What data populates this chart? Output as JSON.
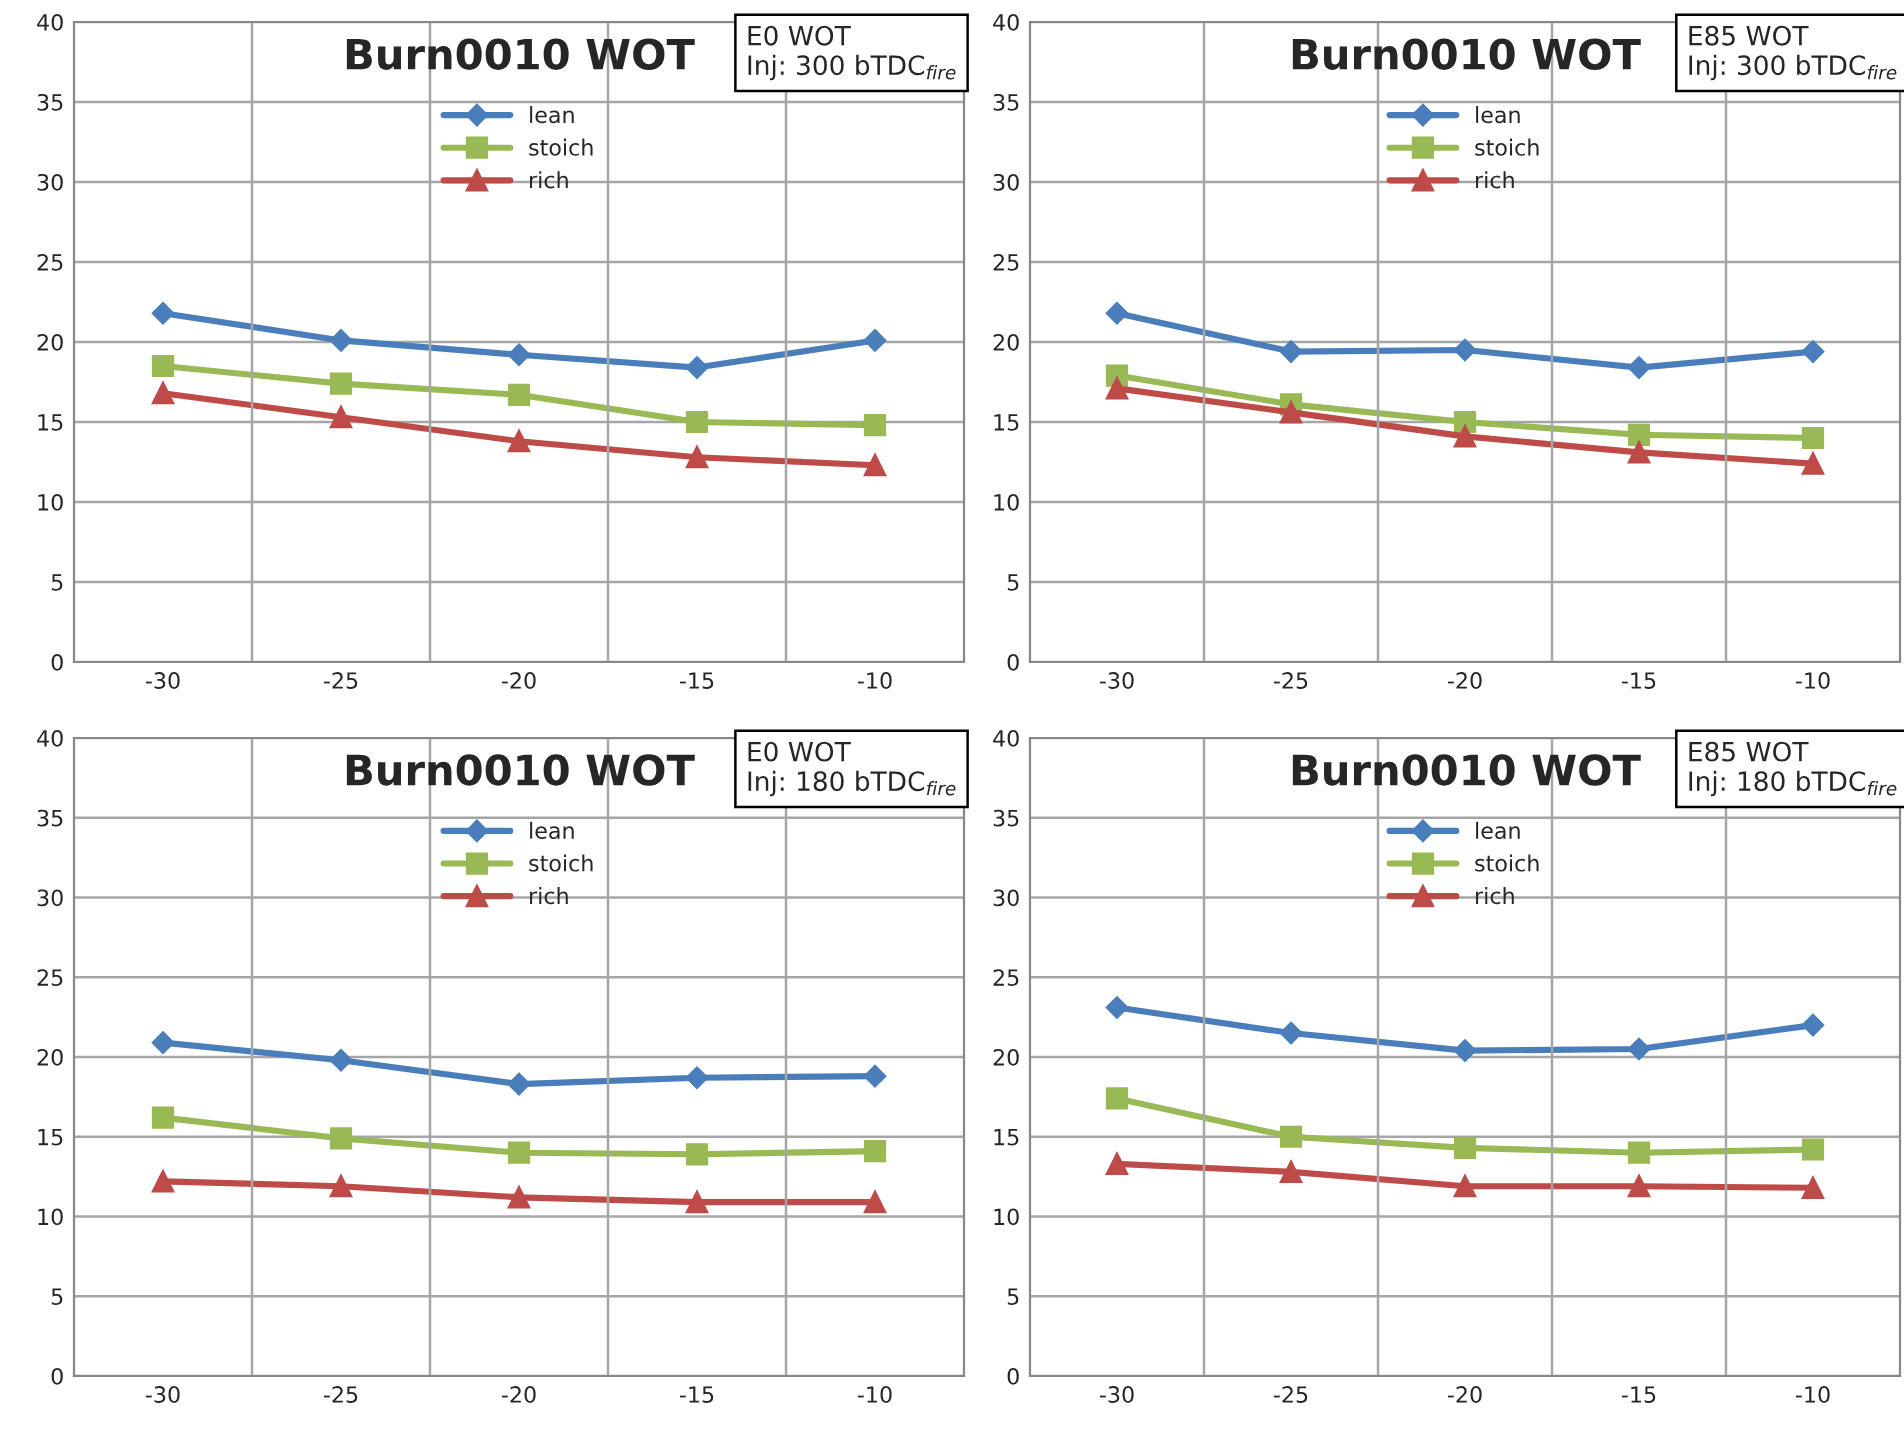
{
  "chart_data": [
    {
      "type": "line",
      "title": "Burn0010 WOT",
      "annotations": [
        "E0 WOT\nInj: 300 bTDC$_{fire}$"
      ],
      "categories": [
        "-30",
        "-25",
        "-20",
        "-15",
        "-10"
      ],
      "ylim": [
        0,
        40
      ],
      "yticks": [
        0,
        5,
        10,
        15,
        20,
        25,
        30,
        35,
        40
      ],
      "grid": true,
      "legend": "top",
      "series": [
        {
          "name": "lean",
          "color": "#4a7ebb",
          "marker": "diamond",
          "values": [
            21.8,
            20.1,
            19.2,
            18.4,
            20.1
          ]
        },
        {
          "name": "stoich",
          "color": "#98b954",
          "marker": "square",
          "values": [
            18.5,
            17.4,
            16.7,
            15.0,
            14.8
          ]
        },
        {
          "name": "rich",
          "color": "#be4b48",
          "marker": "triangle",
          "values": [
            16.8,
            15.3,
            13.8,
            12.8,
            12.3
          ]
        }
      ]
    },
    {
      "type": "line",
      "title": "Burn0010 WOT",
      "annotations": [
        "E85 WOT\nInj: 300 bTDC$_{fire}$"
      ],
      "categories": [
        "-30",
        "-25",
        "-20",
        "-15",
        "-10"
      ],
      "ylim": [
        0,
        40
      ],
      "yticks": [
        0,
        5,
        10,
        15,
        20,
        25,
        30,
        35,
        40
      ],
      "grid": true,
      "legend": "top",
      "series": [
        {
          "name": "lean",
          "color": "#4a7ebb",
          "marker": "diamond",
          "values": [
            21.8,
            19.4,
            19.5,
            18.4,
            19.4
          ]
        },
        {
          "name": "stoich",
          "color": "#98b954",
          "marker": "square",
          "values": [
            17.9,
            16.1,
            15.0,
            14.2,
            14.0
          ]
        },
        {
          "name": "rich",
          "color": "#be4b48",
          "marker": "triangle",
          "values": [
            17.1,
            15.6,
            14.1,
            13.1,
            12.4
          ]
        }
      ]
    },
    {
      "type": "line",
      "title": "Burn0010 WOT",
      "annotations": [
        "E0 WOT\nInj: 180 bTDC$_{fire}$"
      ],
      "categories": [
        "-30",
        "-25",
        "-20",
        "-15",
        "-10"
      ],
      "ylim": [
        0,
        40
      ],
      "yticks": [
        0,
        5,
        10,
        15,
        20,
        25,
        30,
        35,
        40
      ],
      "grid": true,
      "legend": "top",
      "series": [
        {
          "name": "lean",
          "color": "#4a7ebb",
          "marker": "diamond",
          "values": [
            20.9,
            19.8,
            18.3,
            18.7,
            18.8
          ]
        },
        {
          "name": "stoich",
          "color": "#98b954",
          "marker": "square",
          "values": [
            16.2,
            14.9,
            14.0,
            13.9,
            14.1
          ]
        },
        {
          "name": "rich",
          "color": "#be4b48",
          "marker": "triangle",
          "values": [
            12.2,
            11.9,
            11.2,
            10.9,
            10.9
          ]
        }
      ]
    },
    {
      "type": "line",
      "title": "Burn0010 WOT",
      "annotations": [
        "E85 WOT\nInj: 180 bTDC$_{fire}$"
      ],
      "categories": [
        "-30",
        "-25",
        "-20",
        "-15",
        "-10"
      ],
      "ylim": [
        0,
        40
      ],
      "yticks": [
        0,
        5,
        10,
        15,
        20,
        25,
        30,
        35,
        40
      ],
      "grid": true,
      "legend": "top",
      "series": [
        {
          "name": "lean",
          "color": "#4a7ebb",
          "marker": "diamond",
          "values": [
            23.1,
            21.5,
            20.4,
            20.5,
            22.0
          ]
        },
        {
          "name": "stoich",
          "color": "#98b954",
          "marker": "square",
          "values": [
            17.4,
            15.0,
            14.3,
            14.0,
            14.2
          ]
        },
        {
          "name": "rich",
          "color": "#be4b48",
          "marker": "triangle",
          "values": [
            13.3,
            12.8,
            11.9,
            11.9,
            11.8
          ]
        }
      ]
    }
  ]
}
